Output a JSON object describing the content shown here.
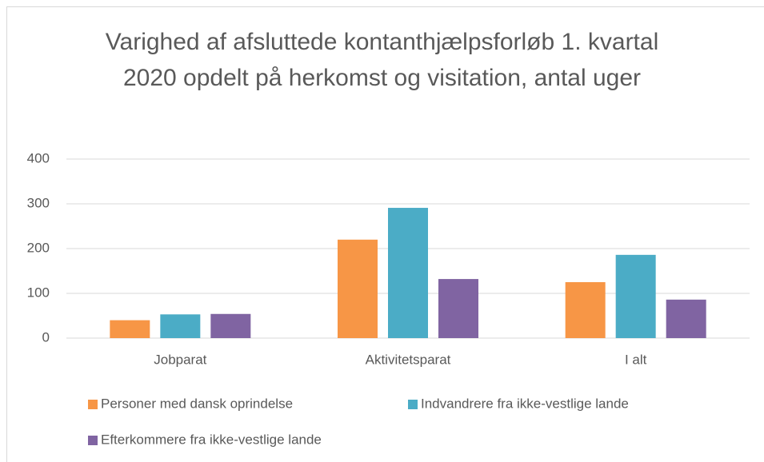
{
  "chart_data": {
    "type": "bar",
    "title": "Varighed af afsluttede kontanthjælpsforløb 1. kvartal 2020 opdelt på herkomst og visitation, antal uger",
    "categories": [
      "Jobparat",
      "Aktivitetsparat",
      "I alt"
    ],
    "series": [
      {
        "name": "Personer med dansk oprindelse",
        "color": "#f79646",
        "values": [
          40,
          220,
          125
        ]
      },
      {
        "name": "Indvandrere fra ikke-vestlige lande",
        "color": "#4bacc6",
        "values": [
          53,
          291,
          186
        ]
      },
      {
        "name": "Efterkommere fra ikke-vestlige lande",
        "color": "#8064a2",
        "values": [
          54,
          132,
          86
        ]
      }
    ],
    "ylim": [
      0,
      400
    ],
    "yticks": [
      0,
      100,
      200,
      300,
      400
    ],
    "grid": true,
    "legend": "bottom"
  }
}
